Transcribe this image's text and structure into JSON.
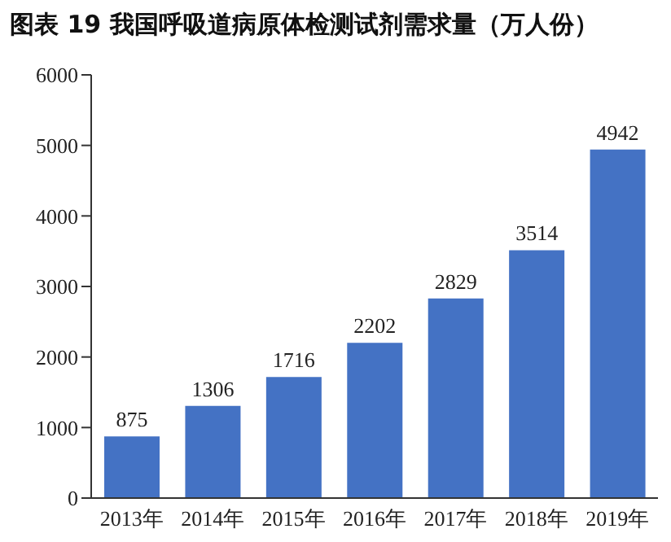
{
  "chart_data": {
    "type": "bar",
    "title": "图表 19 我国呼吸道病原体检测试剂需求量（万人份）",
    "categories": [
      "2013年",
      "2014年",
      "2015年",
      "2016年",
      "2017年",
      "2018年",
      "2019年"
    ],
    "values": [
      875,
      1306,
      1716,
      2202,
      2829,
      3514,
      4942
    ],
    "color": "#4472c4",
    "ylim": [
      0,
      6000
    ],
    "yticks": [
      0,
      1000,
      2000,
      3000,
      4000,
      5000,
      6000
    ],
    "grid": false,
    "legend": false,
    "data_labels": true
  }
}
